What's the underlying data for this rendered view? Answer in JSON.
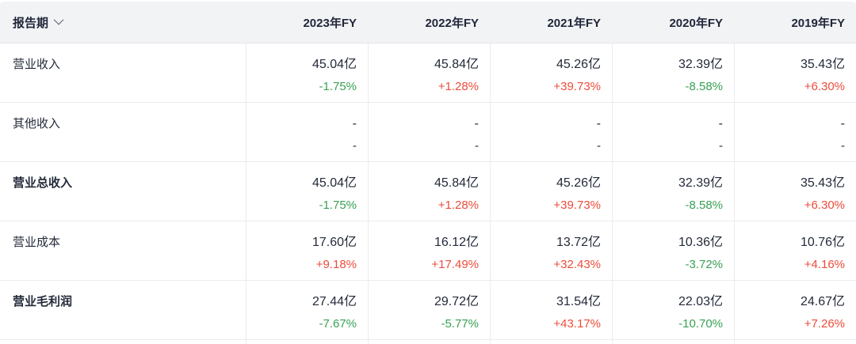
{
  "header": {
    "report_period": {
      "label": "报告期",
      "dropdown_icon": "chevron-down"
    },
    "periods": [
      "2023年FY",
      "2022年FY",
      "2021年FY",
      "2020年FY",
      "2019年FY"
    ]
  },
  "rows": [
    {
      "label": "营业收入",
      "emphasis": false,
      "cells": [
        {
          "value": "45.04亿",
          "change": "-1.75%",
          "trend": "down"
        },
        {
          "value": "45.84亿",
          "change": "+1.28%",
          "trend": "up"
        },
        {
          "value": "45.26亿",
          "change": "+39.73%",
          "trend": "up"
        },
        {
          "value": "32.39亿",
          "change": "-8.58%",
          "trend": "down"
        },
        {
          "value": "35.43亿",
          "change": "+6.30%",
          "trend": "up"
        }
      ]
    },
    {
      "label": "其他收入",
      "emphasis": false,
      "cells": [
        {
          "value": "-",
          "change": "-",
          "trend": "none"
        },
        {
          "value": "-",
          "change": "-",
          "trend": "none"
        },
        {
          "value": "-",
          "change": "-",
          "trend": "none"
        },
        {
          "value": "-",
          "change": "-",
          "trend": "none"
        },
        {
          "value": "-",
          "change": "-",
          "trend": "none"
        }
      ]
    },
    {
      "label": "营业总收入",
      "emphasis": true,
      "cells": [
        {
          "value": "45.04亿",
          "change": "-1.75%",
          "trend": "down"
        },
        {
          "value": "45.84亿",
          "change": "+1.28%",
          "trend": "up"
        },
        {
          "value": "45.26亿",
          "change": "+39.73%",
          "trend": "up"
        },
        {
          "value": "32.39亿",
          "change": "-8.58%",
          "trend": "down"
        },
        {
          "value": "35.43亿",
          "change": "+6.30%",
          "trend": "up"
        }
      ]
    },
    {
      "label": "营业成本",
      "emphasis": false,
      "cells": [
        {
          "value": "17.60亿",
          "change": "+9.18%",
          "trend": "up"
        },
        {
          "value": "16.12亿",
          "change": "+17.49%",
          "trend": "up"
        },
        {
          "value": "13.72亿",
          "change": "+32.43%",
          "trend": "up"
        },
        {
          "value": "10.36亿",
          "change": "-3.72%",
          "trend": "down"
        },
        {
          "value": "10.76亿",
          "change": "+4.16%",
          "trend": "up"
        }
      ]
    },
    {
      "label": "营业毛利润",
      "emphasis": true,
      "cells": [
        {
          "value": "27.44亿",
          "change": "-7.67%",
          "trend": "down"
        },
        {
          "value": "29.72亿",
          "change": "-5.77%",
          "trend": "down"
        },
        {
          "value": "31.54亿",
          "change": "+43.17%",
          "trend": "up"
        },
        {
          "value": "22.03亿",
          "change": "-10.70%",
          "trend": "down"
        },
        {
          "value": "24.67亿",
          "change": "+7.26%",
          "trend": "up"
        }
      ]
    }
  ],
  "colors": {
    "up": "#ec4c3b",
    "down": "#38a154",
    "text": "#232a3a",
    "header_bg": "#f2f3f5",
    "border": "#e9ebee"
  }
}
